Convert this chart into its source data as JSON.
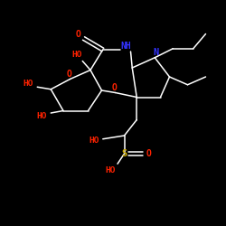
{
  "background_color": "#000000",
  "bond_color": "#ffffff",
  "atom_colors": {
    "O": "#ff2200",
    "HO": "#ff2200",
    "N": "#3333ff",
    "NH": "#3333ff",
    "S": "#ccaa00",
    "C": "#ffffff"
  },
  "figsize": [
    2.5,
    2.5
  ],
  "dpi": 100,
  "xlim": [
    0,
    10
  ],
  "ylim": [
    0,
    10
  ]
}
